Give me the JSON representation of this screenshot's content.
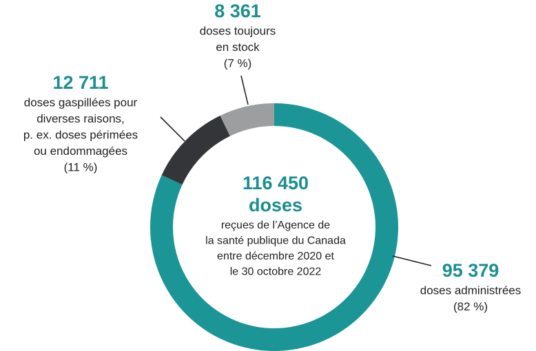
{
  "chart_data": {
    "type": "donut",
    "categories": [
      [
        "doses administrées"
      ],
      [
        "doses gaspillées pour",
        "diverses raisons,",
        "p. ex. doses périmées",
        "ou endommagées"
      ],
      [
        "doses toujours",
        "en stock"
      ]
    ],
    "values": [
      95379,
      12711,
      8361
    ],
    "value_labels": [
      "95 379",
      "12 711",
      "8 361"
    ],
    "percentages": [
      82,
      11,
      7
    ],
    "percentage_labels": [
      "(82 %)",
      "(11 %)",
      "(7 %)"
    ],
    "colors": [
      "#1b9596",
      "#333538",
      "#9c9ea0"
    ],
    "total": 116450,
    "total_label": "116 450",
    "center_title": "doses",
    "center_text": [
      "reçues de l’Agence de",
      "la santé publique du Canada",
      "entre décembre 2020 et",
      "le 30 octobre 2022"
    ]
  }
}
